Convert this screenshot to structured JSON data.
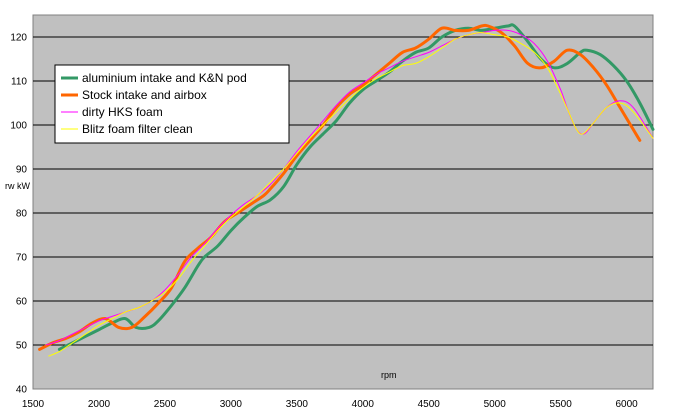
{
  "chart_data": {
    "type": "line",
    "title": "",
    "xlabel": "rpm",
    "ylabel": "rw kW",
    "xlim": [
      1500,
      6200
    ],
    "ylim": [
      40,
      125
    ],
    "x_ticks": [
      1500,
      2000,
      2500,
      3000,
      3500,
      4000,
      4500,
      5000,
      5500,
      6000
    ],
    "y_ticks": [
      40,
      50,
      60,
      70,
      80,
      90,
      100,
      110,
      120
    ],
    "grid": "horizontal",
    "legend_position": "top-left",
    "plot_background": "#c0c0c0",
    "series": [
      {
        "name": "aluminium intake and K&N pod",
        "color": "#339966",
        "points": [
          [
            1700,
            49
          ],
          [
            1800,
            50.5
          ],
          [
            1900,
            52
          ],
          [
            2000,
            53.5
          ],
          [
            2100,
            55
          ],
          [
            2200,
            56
          ],
          [
            2280,
            54
          ],
          [
            2380,
            54
          ],
          [
            2450,
            55.5
          ],
          [
            2550,
            59
          ],
          [
            2650,
            63
          ],
          [
            2750,
            68
          ],
          [
            2800,
            70
          ],
          [
            2900,
            72.5
          ],
          [
            3000,
            76
          ],
          [
            3100,
            79
          ],
          [
            3200,
            81.5
          ],
          [
            3300,
            83
          ],
          [
            3400,
            86
          ],
          [
            3500,
            91
          ],
          [
            3600,
            95
          ],
          [
            3700,
            98
          ],
          [
            3800,
            101
          ],
          [
            3900,
            105
          ],
          [
            4000,
            108
          ],
          [
            4100,
            110
          ],
          [
            4200,
            112
          ],
          [
            4300,
            114.5
          ],
          [
            4400,
            116.5
          ],
          [
            4500,
            117.5
          ],
          [
            4600,
            120
          ],
          [
            4700,
            121.5
          ],
          [
            4800,
            122
          ],
          [
            4900,
            121.5
          ],
          [
            5000,
            122
          ],
          [
            5100,
            122.5
          ],
          [
            5150,
            122.5
          ],
          [
            5250,
            119
          ],
          [
            5350,
            115
          ],
          [
            5450,
            113
          ],
          [
            5550,
            114
          ],
          [
            5650,
            116.5
          ],
          [
            5700,
            117
          ],
          [
            5800,
            116
          ],
          [
            5900,
            113.5
          ],
          [
            6000,
            110
          ],
          [
            6100,
            105
          ],
          [
            6200,
            99
          ]
        ]
      },
      {
        "name": "Stock intake and airbox",
        "color": "#ff6600",
        "points": [
          [
            1550,
            49
          ],
          [
            1650,
            50.5
          ],
          [
            1750,
            51.5
          ],
          [
            1850,
            53
          ],
          [
            1950,
            55
          ],
          [
            2050,
            56
          ],
          [
            2150,
            54
          ],
          [
            2250,
            54
          ],
          [
            2350,
            56.5
          ],
          [
            2450,
            59.5
          ],
          [
            2550,
            63
          ],
          [
            2650,
            69
          ],
          [
            2750,
            72
          ],
          [
            2850,
            74.5
          ],
          [
            2950,
            78
          ],
          [
            3050,
            80
          ],
          [
            3150,
            82
          ],
          [
            3250,
            84
          ],
          [
            3300,
            85.5
          ],
          [
            3400,
            89
          ],
          [
            3500,
            93
          ],
          [
            3600,
            96.5
          ],
          [
            3700,
            100
          ],
          [
            3800,
            104
          ],
          [
            3900,
            107
          ],
          [
            4000,
            109
          ],
          [
            4100,
            111.5
          ],
          [
            4200,
            114
          ],
          [
            4300,
            116.5
          ],
          [
            4400,
            117.5
          ],
          [
            4500,
            119.5
          ],
          [
            4600,
            122
          ],
          [
            4700,
            121.5
          ],
          [
            4800,
            121.5
          ],
          [
            4900,
            122.5
          ],
          [
            4950,
            122.5
          ],
          [
            5050,
            121
          ],
          [
            5150,
            118
          ],
          [
            5250,
            114
          ],
          [
            5350,
            113
          ],
          [
            5450,
            114.5
          ],
          [
            5550,
            117
          ],
          [
            5650,
            116
          ],
          [
            5750,
            113
          ],
          [
            5850,
            109
          ],
          [
            5950,
            104
          ],
          [
            6050,
            99
          ],
          [
            6100,
            96.5
          ]
        ]
      },
      {
        "name": "dirty HKS foam",
        "color": "#ff00ff",
        "points": [
          [
            1600,
            50
          ],
          [
            1700,
            51
          ],
          [
            1800,
            52.5
          ],
          [
            1900,
            54
          ],
          [
            2000,
            55.5
          ],
          [
            2100,
            56.5
          ],
          [
            2200,
            57.5
          ],
          [
            2300,
            58.5
          ],
          [
            2400,
            60
          ],
          [
            2500,
            62.5
          ],
          [
            2600,
            66
          ],
          [
            2700,
            70
          ],
          [
            2800,
            73
          ],
          [
            2900,
            76.5
          ],
          [
            3000,
            79.5
          ],
          [
            3100,
            82
          ],
          [
            3200,
            84
          ],
          [
            3300,
            86.5
          ],
          [
            3400,
            90
          ],
          [
            3500,
            94
          ],
          [
            3600,
            97.5
          ],
          [
            3700,
            101
          ],
          [
            3800,
            104.5
          ],
          [
            3900,
            107.5
          ],
          [
            4000,
            109.5
          ],
          [
            4100,
            111.5
          ],
          [
            4200,
            113
          ],
          [
            4300,
            114.5
          ],
          [
            4400,
            115.5
          ],
          [
            4500,
            116.5
          ],
          [
            4600,
            118
          ],
          [
            4700,
            119.5
          ],
          [
            4800,
            120.5
          ],
          [
            4900,
            121
          ],
          [
            5000,
            121.5
          ],
          [
            5100,
            121.5
          ],
          [
            5200,
            120.5
          ],
          [
            5300,
            118.5
          ],
          [
            5400,
            114.5
          ],
          [
            5500,
            108
          ],
          [
            5560,
            103
          ],
          [
            5620,
            99
          ],
          [
            5680,
            98
          ],
          [
            5750,
            100.5
          ],
          [
            5850,
            104
          ],
          [
            5950,
            105.5
          ],
          [
            6050,
            104
          ],
          [
            6200,
            97
          ]
        ]
      },
      {
        "name": "Blitz foam filter clean",
        "color": "#ffff00",
        "points": [
          [
            1620,
            47.5
          ],
          [
            1700,
            48.5
          ],
          [
            1800,
            50.5
          ],
          [
            1900,
            52.5
          ],
          [
            2000,
            54.5
          ],
          [
            2100,
            56
          ],
          [
            2200,
            57.5
          ],
          [
            2300,
            58.5
          ],
          [
            2400,
            60
          ],
          [
            2500,
            62
          ],
          [
            2600,
            65
          ],
          [
            2700,
            69
          ],
          [
            2800,
            72.5
          ],
          [
            2900,
            76
          ],
          [
            3000,
            79
          ],
          [
            3100,
            81.5
          ],
          [
            3200,
            84
          ],
          [
            3300,
            87
          ],
          [
            3400,
            90
          ],
          [
            3500,
            93.5
          ],
          [
            3600,
            97
          ],
          [
            3700,
            100
          ],
          [
            3800,
            103
          ],
          [
            3900,
            106
          ],
          [
            4000,
            108.5
          ],
          [
            4100,
            110.5
          ],
          [
            4200,
            112
          ],
          [
            4300,
            113.5
          ],
          [
            4400,
            114
          ],
          [
            4500,
            115.5
          ],
          [
            4600,
            117.5
          ],
          [
            4700,
            119.5
          ],
          [
            4800,
            120.5
          ],
          [
            4900,
            121
          ],
          [
            5000,
            120.5
          ],
          [
            5100,
            120
          ],
          [
            5200,
            118.5
          ],
          [
            5300,
            116.5
          ],
          [
            5400,
            113
          ],
          [
            5500,
            107
          ],
          [
            5560,
            103
          ],
          [
            5620,
            99
          ],
          [
            5670,
            98
          ],
          [
            5750,
            100.5
          ],
          [
            5850,
            104
          ],
          [
            5950,
            105
          ],
          [
            6050,
            103
          ],
          [
            6200,
            97
          ]
        ]
      }
    ]
  }
}
